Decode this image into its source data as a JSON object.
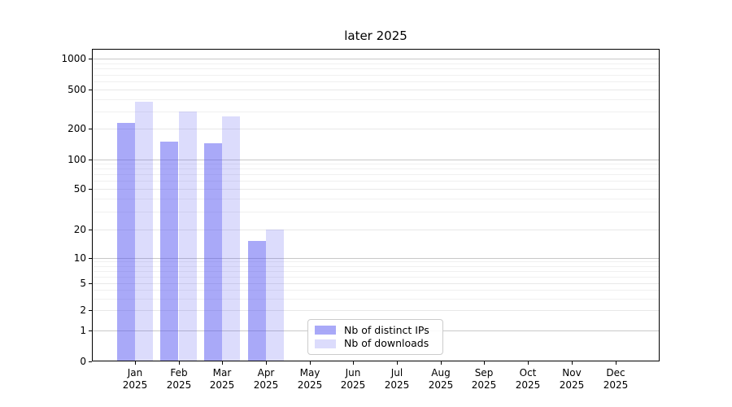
{
  "chart_data": {
    "type": "bar",
    "title": "later 2025",
    "categories": [
      {
        "month": "Jan",
        "year": "2025"
      },
      {
        "month": "Feb",
        "year": "2025"
      },
      {
        "month": "Mar",
        "year": "2025"
      },
      {
        "month": "Apr",
        "year": "2025"
      },
      {
        "month": "May",
        "year": "2025"
      },
      {
        "month": "Jun",
        "year": "2025"
      },
      {
        "month": "Jul",
        "year": "2025"
      },
      {
        "month": "Aug",
        "year": "2025"
      },
      {
        "month": "Sep",
        "year": "2025"
      },
      {
        "month": "Oct",
        "year": "2025"
      },
      {
        "month": "Nov",
        "year": "2025"
      },
      {
        "month": "Dec",
        "year": "2025"
      }
    ],
    "series": [
      {
        "name": "Nb of distinct IPs",
        "color": "#a9a9f7",
        "fill": "rgba(80,80,240,0.49)",
        "values": [
          230,
          150,
          143,
          15,
          0,
          0,
          0,
          0,
          0,
          0,
          0,
          0
        ]
      },
      {
        "name": "Nb of downloads",
        "color": "#dcdcf9",
        "fill": "rgba(80,80,240,0.20)",
        "values": [
          375,
          300,
          265,
          20,
          0,
          0,
          0,
          0,
          0,
          0,
          0,
          0
        ]
      }
    ],
    "xlabel": "",
    "ylabel": "",
    "yscale": "log-like (1-2-5 tick sequence with 0 baseline)",
    "yticks": [
      0,
      1,
      2,
      5,
      10,
      20,
      50,
      100,
      200,
      500,
      1000
    ],
    "y_minor_ticks": [
      3,
      4,
      6,
      7,
      8,
      9,
      30,
      40,
      60,
      70,
      80,
      90,
      300,
      400,
      600,
      700,
      800,
      900
    ],
    "ylim": [
      0,
      1250
    ],
    "grid": "horizontal",
    "legend_position": "lower center"
  }
}
